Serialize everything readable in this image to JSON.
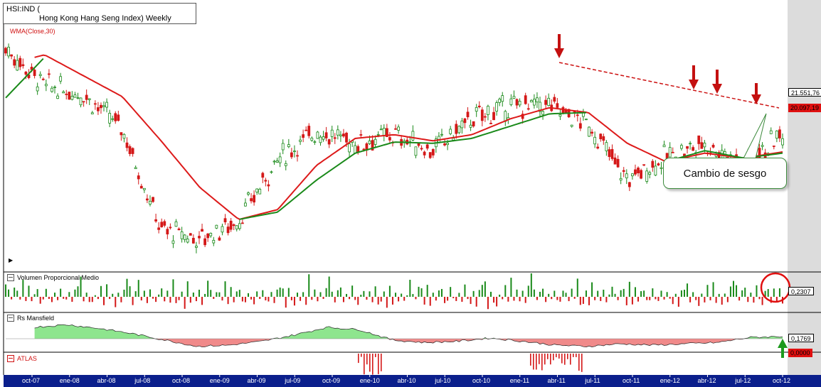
{
  "header": {
    "symbol": "HSI:IND (",
    "name": "Hong Kong Hang Seng Index) Weekly",
    "indicator": "WMA(Close,30)"
  },
  "panels": {
    "volume_label": "Volumen Proporcional Medio",
    "mansfield_label": "Rs Mansfield",
    "atlas_label": "ATLAS"
  },
  "value_tags": {
    "price_last": "21.551,76",
    "wma_last": "20.097,19",
    "volume_last": "0,2307",
    "mansfield_last": "0,1769",
    "atlas_last": "0,0000"
  },
  "annotation": {
    "callout_text": "Cambio de sesgo"
  },
  "colors": {
    "up": "#1a8a1a",
    "down": "#d41818",
    "wma": "#dd1a1a",
    "sma_green": "#1a8a1a",
    "axis_bar": "#0b1f8c",
    "mansfield_pos": "#8ee58e",
    "mansfield_neg": "#f08a8a",
    "arrow_red": "#c41010",
    "arrow_green": "#1d9a1d"
  },
  "chart_data": {
    "type": "line",
    "title": "HSI:IND ( Hong Kong Hang Seng Index) Weekly",
    "x_tick_labels": [
      "oct-07",
      "ene-08",
      "abr-08",
      "jul-08",
      "oct-08",
      "ene-09",
      "abr-09",
      "jul-09",
      "oct-09",
      "ene-10",
      "abr-10",
      "jul-10",
      "oct-10",
      "ene-11",
      "abr-11",
      "jul-11",
      "oct-11",
      "ene-12",
      "abr-12",
      "jul-12",
      "oct-12"
    ],
    "ylim": [
      10500,
      32000
    ],
    "series": [
      {
        "name": "",
        "kind": "price",
        "x": [
          "oct-07",
          "ene-08",
          "abr-08",
          "jul-08",
          "oct-08",
          "ene-09",
          "abr-09",
          "jul-09",
          "oct-09",
          "ene-10",
          "abr-10",
          "jul-10",
          "oct-10",
          "ene-11",
          "abr-11",
          "jul-11",
          "oct-11",
          "ene-12",
          "abr-12",
          "jul-12",
          "oct-12"
        ],
        "values": [
          28500,
          25500,
          24800,
          22000,
          13800,
          13000,
          14500,
          19500,
          21800,
          20800,
          21500,
          20200,
          22800,
          23800,
          23900,
          22300,
          17800,
          19700,
          20800,
          19000,
          21551
        ]
      },
      {
        "name": "WMA(Close,30)",
        "kind": "wma",
        "x": [
          "oct-07",
          "ene-08",
          "abr-08",
          "jul-08",
          "oct-08",
          "ene-09",
          "abr-09",
          "jul-09",
          "oct-09",
          "ene-10",
          "abr-10",
          "jul-10",
          "oct-10",
          "ene-11",
          "abr-11",
          "jul-11",
          "oct-11",
          "ene-12",
          "abr-12",
          "jul-12",
          "oct-12"
        ],
        "values": [
          27200,
          28000,
          26300,
          24600,
          21000,
          17200,
          14600,
          15400,
          19000,
          21200,
          21500,
          21000,
          21500,
          22800,
          23700,
          23300,
          20800,
          19300,
          20000,
          19600,
          20097
        ]
      },
      {
        "name": "",
        "kind": "sma",
        "x": [
          "oct-07",
          "ene-08",
          "abr-08",
          "jul-08",
          "oct-08",
          "ene-09",
          "abr-09",
          "jul-09",
          "oct-09",
          "ene-10",
          "abr-10",
          "jul-10",
          "oct-10",
          "ene-11",
          "abr-11",
          "jul-11",
          "oct-11",
          "ene-12",
          "abr-12",
          "jul-12",
          "oct-12"
        ],
        "values": [
          24500,
          27800,
          null,
          null,
          null,
          null,
          14600,
          15200,
          17800,
          20000,
          20900,
          20800,
          21200,
          22200,
          23200,
          23300,
          null,
          19300,
          20200,
          19600,
          20000
        ]
      }
    ],
    "volume_panel": {
      "name": "Volumen Proporcional Medio",
      "values": [
        0.9,
        0.4,
        -0.2,
        0.7,
        0.5,
        -0.4,
        0.8,
        -0.6,
        0.6,
        -0.3,
        0.3,
        0.8,
        -0.5,
        -0.3,
        0.5,
        -0.2,
        -0.4,
        0.3,
        -0.3,
        0.6,
        -0.2,
        -0.4,
        0.3,
        -0.5,
        0.4,
        0.9,
        1.0,
        -0.6,
        0.6,
        -0.3,
        -0.5,
        0.2,
        -0.3,
        0.6,
        -0.4,
        1.1,
        -0.3,
        0.4,
        -0.5,
        0.3,
        -0.3,
        0.6,
        1.3,
        0.7,
        -0.4,
        0.4,
        0.9,
        -0.4,
        0.3,
        -0.3,
        0.6,
        -0.2,
        -0.4,
        0.3,
        0.5,
        -0.3,
        0.4,
        -0.3,
        0.9,
        -0.5,
        -0.4,
        0.3,
        -0.6,
        0.8,
        -0.4,
        0.3,
        -0.3,
        0.4,
        -0.5,
        0.2
      ],
      "last": 0.2307
    },
    "mansfield_panel": {
      "name": "Rs Mansfield",
      "values": [
        0.9,
        1.1,
        0.8,
        0.4,
        -0.1,
        -0.6,
        -0.5,
        -0.2,
        0.3,
        0.9,
        0.7,
        -0.1,
        -0.3,
        -0.2,
        0.05,
        -0.2,
        -0.5,
        -0.6,
        -0.4,
        -0.5,
        -0.4,
        -0.3,
        0.1,
        0.1769
      ],
      "last": 0.1769
    },
    "atlas_panel": {
      "name": "ATLAS",
      "last": 0.0
    }
  }
}
